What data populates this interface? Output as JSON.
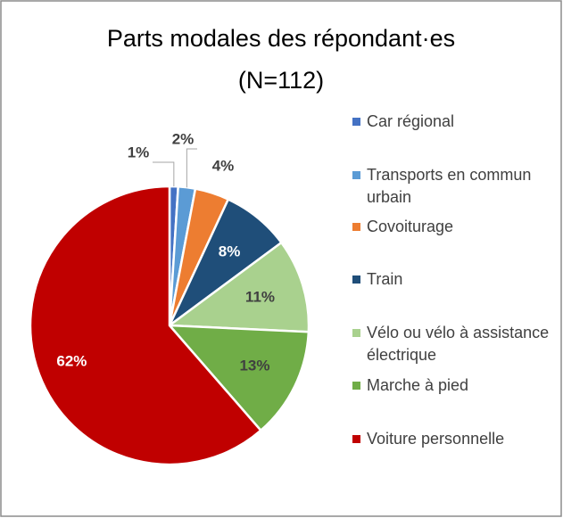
{
  "chart_data": {
    "type": "pie",
    "title": "Parts modales des répondant·es",
    "subtitle": "(N=112)",
    "categories": [
      "Car régional",
      "Transports en commun urbain",
      "Covoiturage",
      "Train",
      "Vélo ou vélo à assistance électrique",
      "Marche à pied",
      "Voiture personnelle"
    ],
    "values": [
      1,
      2,
      4,
      8,
      11,
      13,
      62
    ],
    "value_labels": [
      "1%",
      "2%",
      "4%",
      "8%",
      "11%",
      "13%",
      "62%"
    ],
    "colors": [
      "#4472c4",
      "#5b9bd5",
      "#ed7d31",
      "#1f4e79",
      "#a9d18e",
      "#70ad47",
      "#c00000"
    ],
    "legend": "right"
  }
}
